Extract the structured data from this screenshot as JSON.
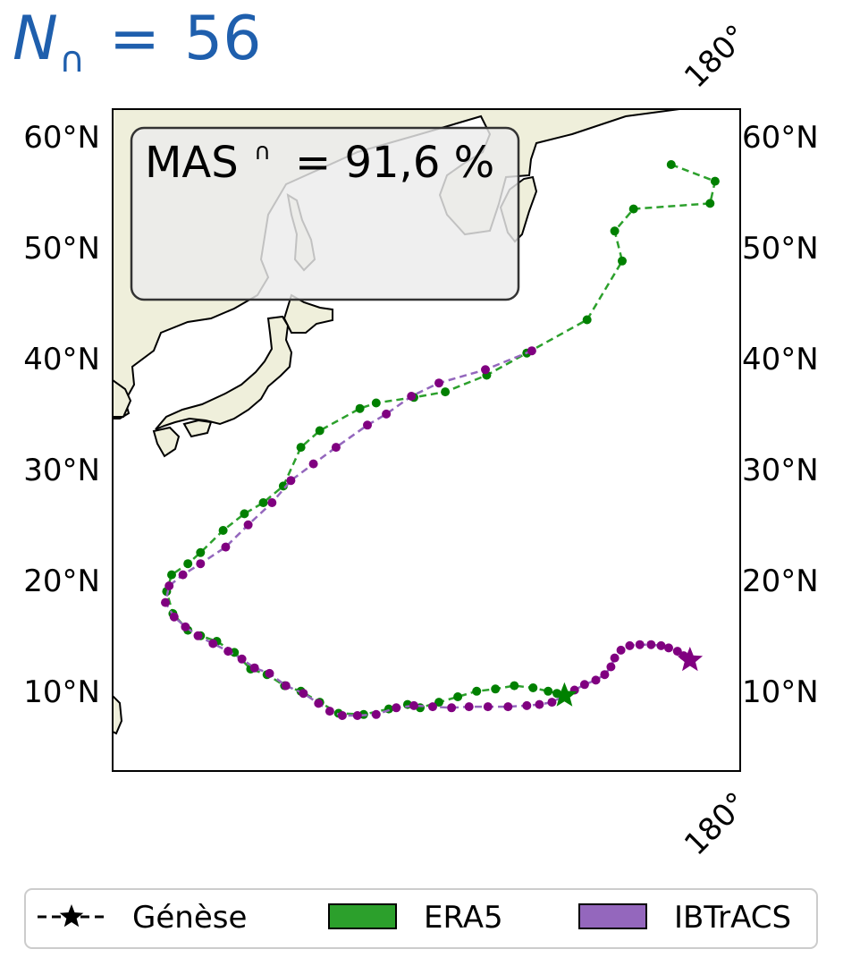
{
  "title": {
    "symbol": "N",
    "subscript": "∩",
    "equals": "=",
    "value": "56"
  },
  "score": {
    "label": "MAS",
    "superscript": "∩",
    "text": "= 91,6 %"
  },
  "map": {
    "lat_ticks": [
      "60°N",
      "50°N",
      "40°N",
      "30°N",
      "20°N",
      "10°N"
    ],
    "lat_values": [
      60,
      50,
      40,
      30,
      20,
      10
    ],
    "lon_tick": "180°",
    "lat_range": [
      2.8,
      62.5
    ],
    "land_color": "#efefdb",
    "frame_color": "#000000"
  },
  "chart_data": {
    "type": "line",
    "series": [
      {
        "name": "ERA5",
        "color": "#2ca02c",
        "marker_color": "#008000",
        "points": [
          [
            144.5,
            57.5
          ],
          [
            148.0,
            56.0
          ],
          [
            147.6,
            54.0
          ],
          [
            141.5,
            53.5
          ],
          [
            140.0,
            51.5
          ],
          [
            140.6,
            48.8
          ],
          [
            137.8,
            43.5
          ],
          [
            133.0,
            40.5
          ],
          [
            129.8,
            38.5
          ],
          [
            126.5,
            37.0
          ],
          [
            124.0,
            36.5
          ],
          [
            121.0,
            36.0
          ],
          [
            119.7,
            35.5
          ],
          [
            116.5,
            33.5
          ],
          [
            115.0,
            32.0
          ],
          [
            113.6,
            28.5
          ],
          [
            112.0,
            27.0
          ],
          [
            110.5,
            26.0
          ],
          [
            108.8,
            24.5
          ],
          [
            107.0,
            22.5
          ],
          [
            106.0,
            21.5
          ],
          [
            104.7,
            20.5
          ],
          [
            104.3,
            19.0
          ],
          [
            104.8,
            17.0
          ],
          [
            106.0,
            15.5
          ],
          [
            107.0,
            15.0
          ],
          [
            108.3,
            14.5
          ],
          [
            109.7,
            13.5
          ],
          [
            111.0,
            12.0
          ],
          [
            112.3,
            11.5
          ],
          [
            113.7,
            10.5
          ],
          [
            115.0,
            10.0
          ],
          [
            116.5,
            9.0
          ],
          [
            118.0,
            8.0
          ],
          [
            120.0,
            7.9
          ],
          [
            122.0,
            8.4
          ],
          [
            123.5,
            8.8
          ],
          [
            124.5,
            8.5
          ],
          [
            126.0,
            9.0
          ],
          [
            127.5,
            9.5
          ],
          [
            129.0,
            10.0
          ],
          [
            130.5,
            10.2
          ],
          [
            132.0,
            10.5
          ],
          [
            133.5,
            10.3
          ],
          [
            134.7,
            10.0
          ],
          [
            135.4,
            9.8
          ],
          [
            136.0,
            9.6
          ]
        ]
      },
      {
        "name": "IBTrACS",
        "color": "#9467bd",
        "marker_color": "#800080",
        "points": [
          [
            133.4,
            40.7
          ],
          [
            129.7,
            39.0
          ],
          [
            126.0,
            37.8
          ],
          [
            123.8,
            36.6
          ],
          [
            121.8,
            35.0
          ],
          [
            120.3,
            34.0
          ],
          [
            117.8,
            32.0
          ],
          [
            116.0,
            30.5
          ],
          [
            114.2,
            29.0
          ],
          [
            112.7,
            27.0
          ],
          [
            110.8,
            25.0
          ],
          [
            109.0,
            23.0
          ],
          [
            107.0,
            21.5
          ],
          [
            105.6,
            20.5
          ],
          [
            104.5,
            19.5
          ],
          [
            104.2,
            18.0
          ],
          [
            104.9,
            16.7
          ],
          [
            105.8,
            15.8
          ],
          [
            106.8,
            15.0
          ],
          [
            108.0,
            14.3
          ],
          [
            109.2,
            13.6
          ],
          [
            110.3,
            12.9
          ],
          [
            111.3,
            12.1
          ],
          [
            112.5,
            11.6
          ],
          [
            113.8,
            10.5
          ],
          [
            115.2,
            9.8
          ],
          [
            116.4,
            8.9
          ],
          [
            117.3,
            8.2
          ],
          [
            118.3,
            7.8
          ],
          [
            119.5,
            7.8
          ],
          [
            121.0,
            7.9
          ],
          [
            122.6,
            8.5
          ],
          [
            124.0,
            8.7
          ],
          [
            125.5,
            8.6
          ],
          [
            127.0,
            8.5
          ],
          [
            128.4,
            8.6
          ],
          [
            129.9,
            8.6
          ],
          [
            131.5,
            8.6
          ],
          [
            133.0,
            8.7
          ],
          [
            134.0,
            8.8
          ],
          [
            135.0,
            9.0
          ],
          [
            136.0,
            9.6
          ],
          [
            136.8,
            10.1
          ],
          [
            137.6,
            10.6
          ],
          [
            138.5,
            11.0
          ],
          [
            139.2,
            11.5
          ],
          [
            139.7,
            12.2
          ],
          [
            140.0,
            13.0
          ],
          [
            140.5,
            13.7
          ],
          [
            141.2,
            14.1
          ],
          [
            142.0,
            14.2
          ],
          [
            142.9,
            14.2
          ],
          [
            143.7,
            14.1
          ],
          [
            144.3,
            13.9
          ],
          [
            145.0,
            13.6
          ],
          [
            145.5,
            13.2
          ],
          [
            146.0,
            12.8
          ]
        ]
      }
    ],
    "genesis": [
      {
        "series": "ERA5",
        "lon": 136.0,
        "lat": 9.6
      },
      {
        "series": "IBTrACS",
        "lon": 146.0,
        "lat": 12.8
      }
    ]
  },
  "legend": {
    "items": [
      {
        "label": "Génèse",
        "kind": "genesis"
      },
      {
        "label": "ERA5",
        "kind": "patch",
        "color": "#2ca02c"
      },
      {
        "label": "IBTrACS",
        "kind": "patch",
        "color": "#9467bd"
      }
    ]
  }
}
